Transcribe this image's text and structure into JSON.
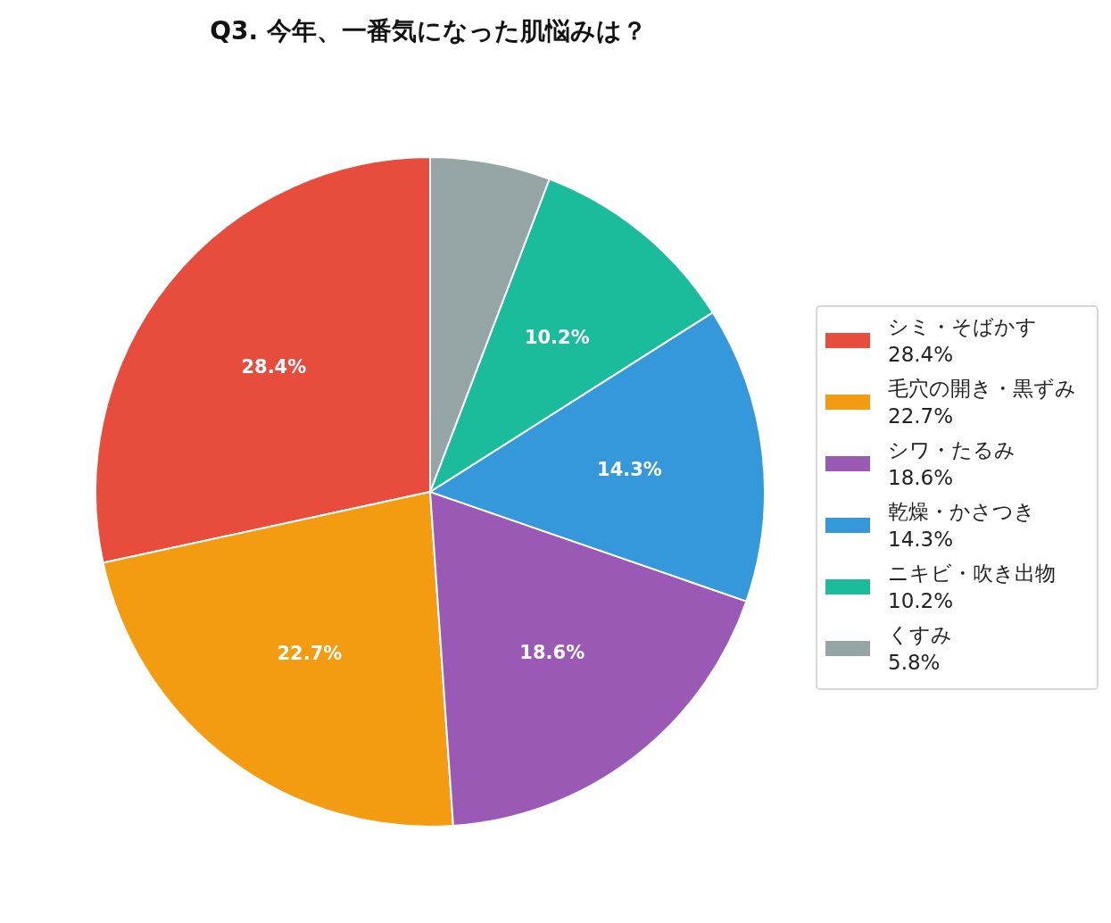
{
  "chart_data": {
    "type": "pie",
    "title": "Q3. 今年、一番気になった肌悩みは？",
    "categories": [
      "シミ・そばかす\n28.4%",
      "毛穴の開き・黒ずみ\n22.7%",
      "シワ・たるみ\n18.6%",
      "乾燥・かさつき\n14.3%",
      "ニキビ・吹き出物\n10.2%",
      "くすみ\n5.8%"
    ],
    "values": [
      28.4,
      22.7,
      18.6,
      14.3,
      10.2,
      5.8
    ],
    "colors": [
      "#e74c3c",
      "#f39c12",
      "#9b59b6",
      "#3498db",
      "#1abc9c",
      "#95a5a6"
    ],
    "value_labels": [
      "28.4%",
      "22.7%",
      "18.6%",
      "14.3%",
      "10.2%",
      null
    ],
    "legend": "right"
  }
}
